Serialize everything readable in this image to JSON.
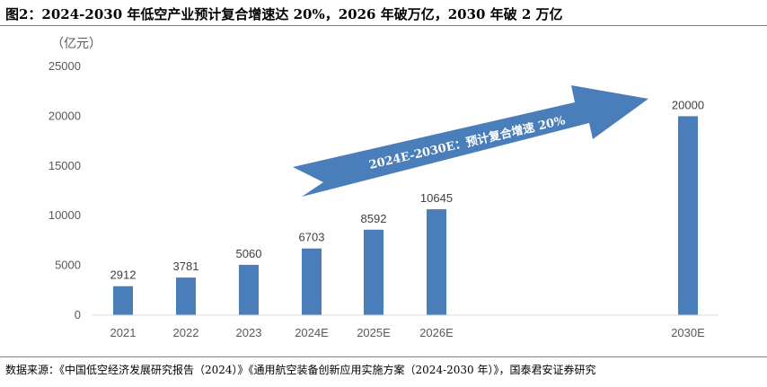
{
  "figure": {
    "title": "图2：2024-2030 年低空产业预计复合增速达 20%，2026 年破万亿，2030 年破 2 万亿",
    "source": "数据来源：《中国低空经济发展研究报告（2024）》《通用航空装备创新应用实施方案（2024-2030 年）》，国泰君安证券研究"
  },
  "chart_data": {
    "type": "bar",
    "unit_label": "（亿元）",
    "categories": [
      "2021",
      "2022",
      "2023",
      "2024E",
      "2025E",
      "2026E",
      "2030E"
    ],
    "values": [
      2912,
      3781,
      5060,
      6703,
      8592,
      10645,
      20000
    ],
    "data_labels": [
      "2912",
      "3781",
      "5060",
      "6703",
      "8592",
      "10645",
      "20000"
    ],
    "ylim": [
      0,
      25000
    ],
    "yticks": [
      "0",
      "5000",
      "10000",
      "15000",
      "20000",
      "25000"
    ],
    "grid": false,
    "bar_color": "#4a7ebb",
    "annotation": {
      "text": "2024E-2030E：预计复合增速 20%",
      "color": "#4a7ebb"
    }
  }
}
